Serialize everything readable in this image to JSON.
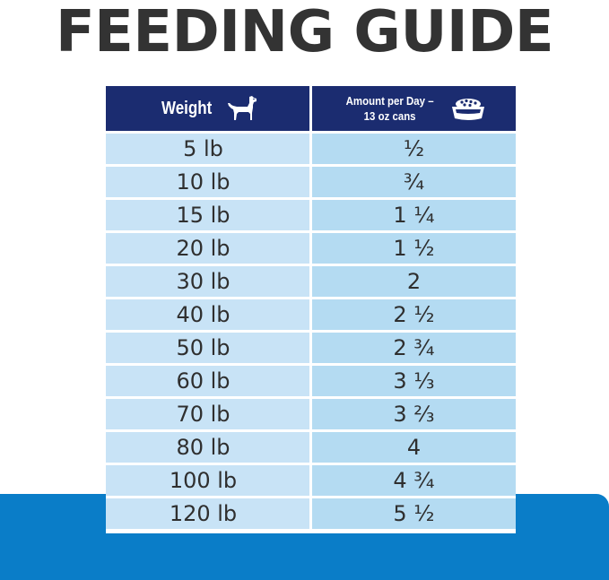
{
  "title": "FEEDING GUIDE",
  "table": {
    "header": {
      "weight_label": "Weight",
      "amount_label_line1": "Amount per Day –",
      "amount_label_line2": "13 oz cans",
      "weight_icon": "dog-icon",
      "amount_icon": "food-bowl-icon"
    },
    "rows": [
      {
        "weight": "5 lb",
        "amount": "½"
      },
      {
        "weight": "10 lb",
        "amount": "¾"
      },
      {
        "weight": "15 lb",
        "amount": "1 ¼"
      },
      {
        "weight": "20 lb",
        "amount": "1 ½"
      },
      {
        "weight": "30 lb",
        "amount": "2"
      },
      {
        "weight": "40 lb",
        "amount": "2 ½"
      },
      {
        "weight": "50 lb",
        "amount": "2 ¾"
      },
      {
        "weight": "60 lb",
        "amount": "3 ⅓"
      },
      {
        "weight": "70 lb",
        "amount": "3 ⅔"
      },
      {
        "weight": "80 lb",
        "amount": "4"
      },
      {
        "weight": "100 lb",
        "amount": "4 ¾"
      },
      {
        "weight": "120 lb",
        "amount": "5 ½"
      }
    ]
  },
  "colors": {
    "title_text": "#333333",
    "header_bg": "#1b2c70",
    "left_cell_bg": "#c8e3f6",
    "right_cell_bg": "#b4dbf2",
    "bottom_band": "#0a7dc8"
  }
}
